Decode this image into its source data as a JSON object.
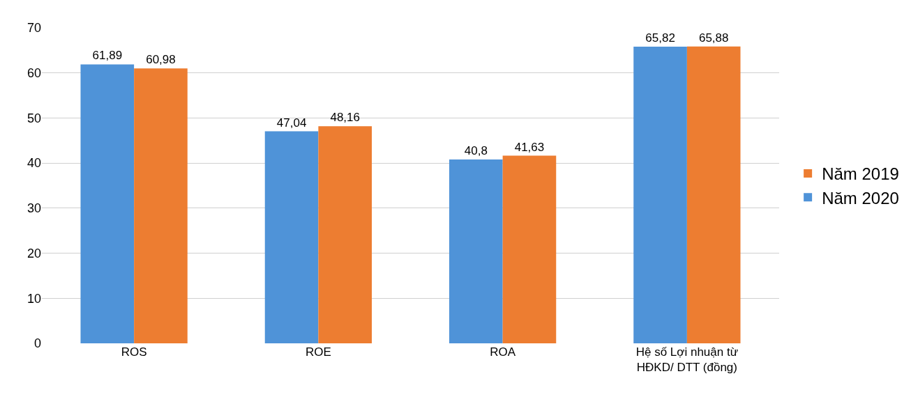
{
  "chart_data": {
    "type": "bar",
    "categories": [
      "ROS",
      "ROE",
      "ROA",
      "Hệ số Lợi nhuận từ HĐKD/ DTT (đồng)"
    ],
    "series": [
      {
        "name": "Năm 2020",
        "color": "#4f93d8",
        "values": [
          61.89,
          47.04,
          40.8,
          65.82
        ],
        "value_labels": [
          "61,89",
          "47,04",
          "40,8",
          "65,82"
        ]
      },
      {
        "name": "Năm 2019",
        "color": "#ed7d31",
        "values": [
          60.98,
          48.16,
          41.63,
          65.88
        ],
        "value_labels": [
          "60,98",
          "48,16",
          "41,63",
          "65,88"
        ]
      }
    ],
    "ylim": [
      0,
      70
    ],
    "yticks": [
      0,
      10,
      20,
      30,
      40,
      50,
      60,
      70
    ],
    "grid": "y",
    "legend": "right"
  }
}
